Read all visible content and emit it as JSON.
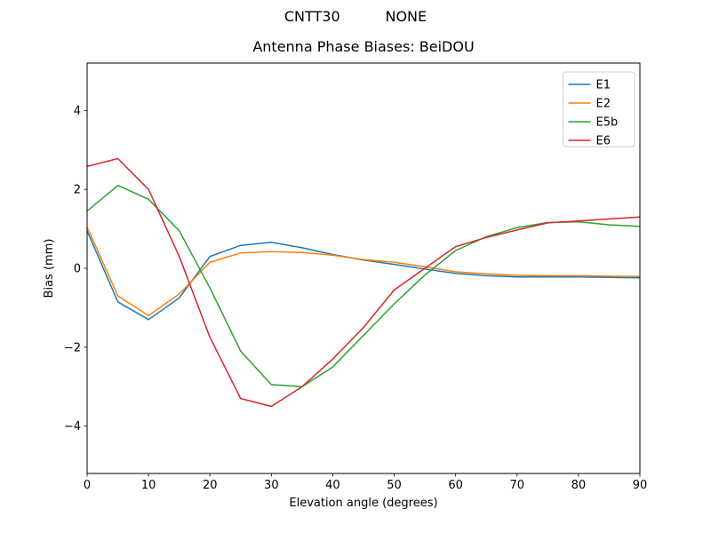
{
  "figure": {
    "suptitle": "CNTT30          NONE",
    "background": "#ffffff"
  },
  "chart_data": {
    "type": "line",
    "title": "Antenna Phase Biases: BeiDOU",
    "xlabel": "Elevation angle (degrees)",
    "ylabel": "Bias (mm)",
    "xlim": [
      0,
      90
    ],
    "ylim": [
      -5.2,
      5.2
    ],
    "xticks": [
      0,
      10,
      20,
      30,
      40,
      50,
      60,
      70,
      80,
      90
    ],
    "xtick_labels": [
      "0",
      "10",
      "20",
      "30",
      "40",
      "50",
      "60",
      "70",
      "80",
      "90"
    ],
    "yticks": [
      -4,
      -2,
      0,
      2,
      4
    ],
    "ytick_labels": [
      "−4",
      "−2",
      "0",
      "2",
      "4"
    ],
    "grid": false,
    "legend": {
      "position": "upper right",
      "entries": [
        "E1",
        "E2",
        "E5b",
        "E6"
      ],
      "border_color": "#cccccc",
      "background": "#ffffff"
    },
    "x": [
      0,
      5,
      10,
      15,
      20,
      25,
      30,
      35,
      40,
      45,
      50,
      55,
      60,
      65,
      70,
      75,
      80,
      85,
      90
    ],
    "series": [
      {
        "name": "E1",
        "color": "#1f77b4",
        "values": [
          0.95,
          -0.85,
          -1.3,
          -0.75,
          0.3,
          0.58,
          0.66,
          0.52,
          0.35,
          0.21,
          0.1,
          -0.02,
          -0.13,
          -0.19,
          -0.22,
          -0.22,
          -0.22,
          -0.23,
          -0.24
        ]
      },
      {
        "name": "E2",
        "color": "#ff7f0e",
        "values": [
          1.05,
          -0.7,
          -1.2,
          -0.65,
          0.15,
          0.39,
          0.42,
          0.4,
          0.33,
          0.22,
          0.15,
          0.04,
          -0.09,
          -0.14,
          -0.18,
          -0.19,
          -0.19,
          -0.2,
          -0.21
        ]
      },
      {
        "name": "E5b",
        "color": "#2ca02c",
        "values": [
          1.45,
          2.1,
          1.75,
          0.95,
          -0.5,
          -2.1,
          -2.95,
          -3.0,
          -2.5,
          -1.7,
          -0.9,
          -0.17,
          0.45,
          0.8,
          1.03,
          1.16,
          1.18,
          1.1,
          1.06
        ]
      },
      {
        "name": "E6",
        "color": "#d62728",
        "values": [
          2.58,
          2.78,
          2.0,
          0.3,
          -1.75,
          -3.3,
          -3.5,
          -3.0,
          -2.3,
          -1.5,
          -0.55,
          0.0,
          0.55,
          0.78,
          0.97,
          1.15,
          1.2,
          1.25,
          1.3
        ]
      }
    ]
  }
}
